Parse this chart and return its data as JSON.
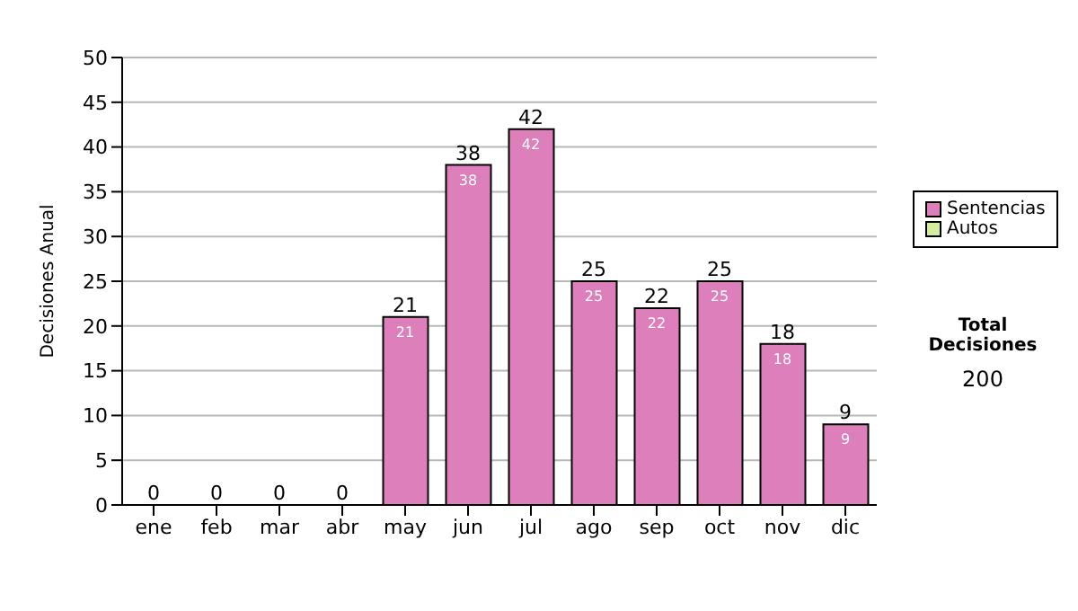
{
  "chart_data": {
    "type": "bar",
    "ylabel": "Decisiones Anual",
    "categories": [
      "ene",
      "feb",
      "mar",
      "abr",
      "may",
      "jun",
      "jul",
      "ago",
      "sep",
      "oct",
      "nov",
      "dic"
    ],
    "series": [
      {
        "name": "Sentencias",
        "color": "#dd7fbb",
        "values": [
          0,
          0,
          0,
          0,
          21,
          38,
          42,
          25,
          22,
          25,
          18,
          9
        ],
        "value_labels": [
          null,
          null,
          null,
          null,
          "21",
          "38",
          "42",
          "25",
          "22",
          "25",
          "18",
          "9"
        ]
      },
      {
        "name": "Autos",
        "color": "#d4eba0",
        "values": [
          0,
          0,
          0,
          0,
          0,
          0,
          0,
          0,
          0,
          0,
          0,
          0
        ]
      }
    ],
    "stacked": true,
    "totals": [
      "0",
      "0",
      "0",
      "0",
      "21",
      "38",
      "42",
      "25",
      "22",
      "25",
      "18",
      "9"
    ],
    "ylim": [
      0,
      50
    ],
    "yticks": [
      0,
      5,
      10,
      15,
      20,
      25,
      30,
      35,
      40,
      45,
      50
    ],
    "grid": "y",
    "legend": "right",
    "annotations": [
      "Total Decisiones",
      "200"
    ]
  }
}
